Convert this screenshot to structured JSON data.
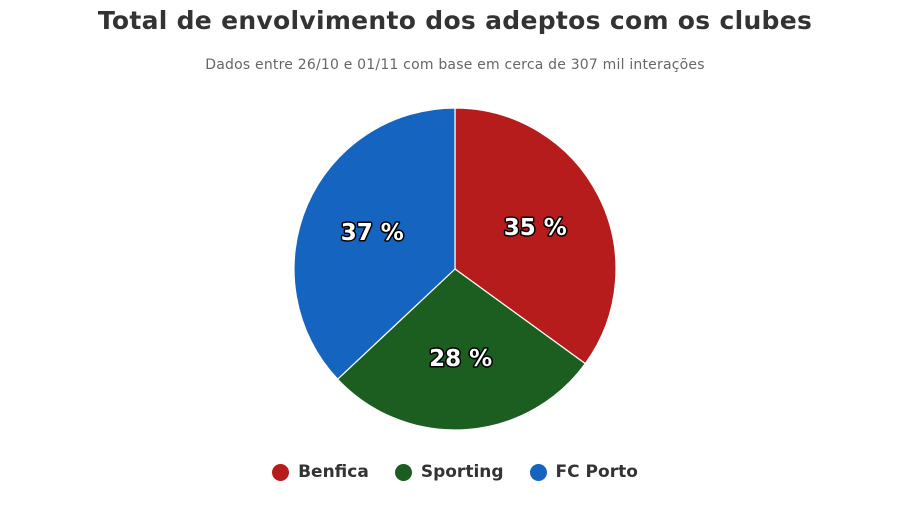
{
  "chart_data": {
    "type": "pie",
    "title": "Total de envolvimento dos adeptos com os clubes",
    "subtitle": "Dados entre 26/10 e 01/11 com base em cerca de 307 mil interações",
    "legend_position": "bottom",
    "slices": [
      {
        "name": "Benfica",
        "value": 35,
        "label": "35 %",
        "color": "#b71c1c"
      },
      {
        "name": "Sporting",
        "value": 28,
        "label": "28 %",
        "color": "#1b5e20"
      },
      {
        "name": "FC Porto",
        "value": 37,
        "label": "37 %",
        "color": "#1565c0"
      }
    ]
  }
}
